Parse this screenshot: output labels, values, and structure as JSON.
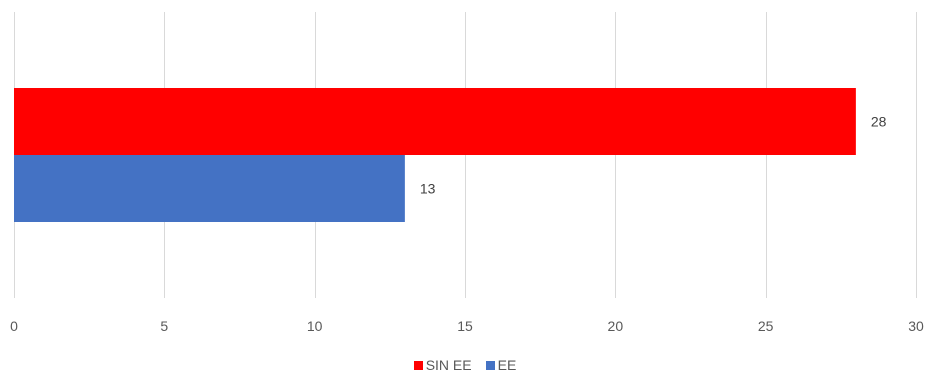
{
  "chart_data": {
    "type": "bar",
    "orientation": "horizontal",
    "categories": [
      ""
    ],
    "series": [
      {
        "name": "SIN EE",
        "values": [
          28
        ],
        "color": "#ff0000"
      },
      {
        "name": "EE",
        "values": [
          13
        ],
        "color": "#4472c4"
      }
    ],
    "title": "",
    "xlabel": "",
    "ylabel": "",
    "xlim": [
      0,
      30
    ],
    "xticks": [
      0,
      5,
      10,
      15,
      20,
      25,
      30
    ],
    "data_labels": [
      "28",
      "13"
    ],
    "grid": true,
    "legend_position": "bottom"
  },
  "legend": {
    "items": [
      {
        "label": "SIN EE",
        "color": "#ff0000"
      },
      {
        "label": "EE",
        "color": "#4472c4"
      }
    ]
  },
  "colors": {
    "gridline": "#d9d9d9",
    "text": "#595959"
  }
}
